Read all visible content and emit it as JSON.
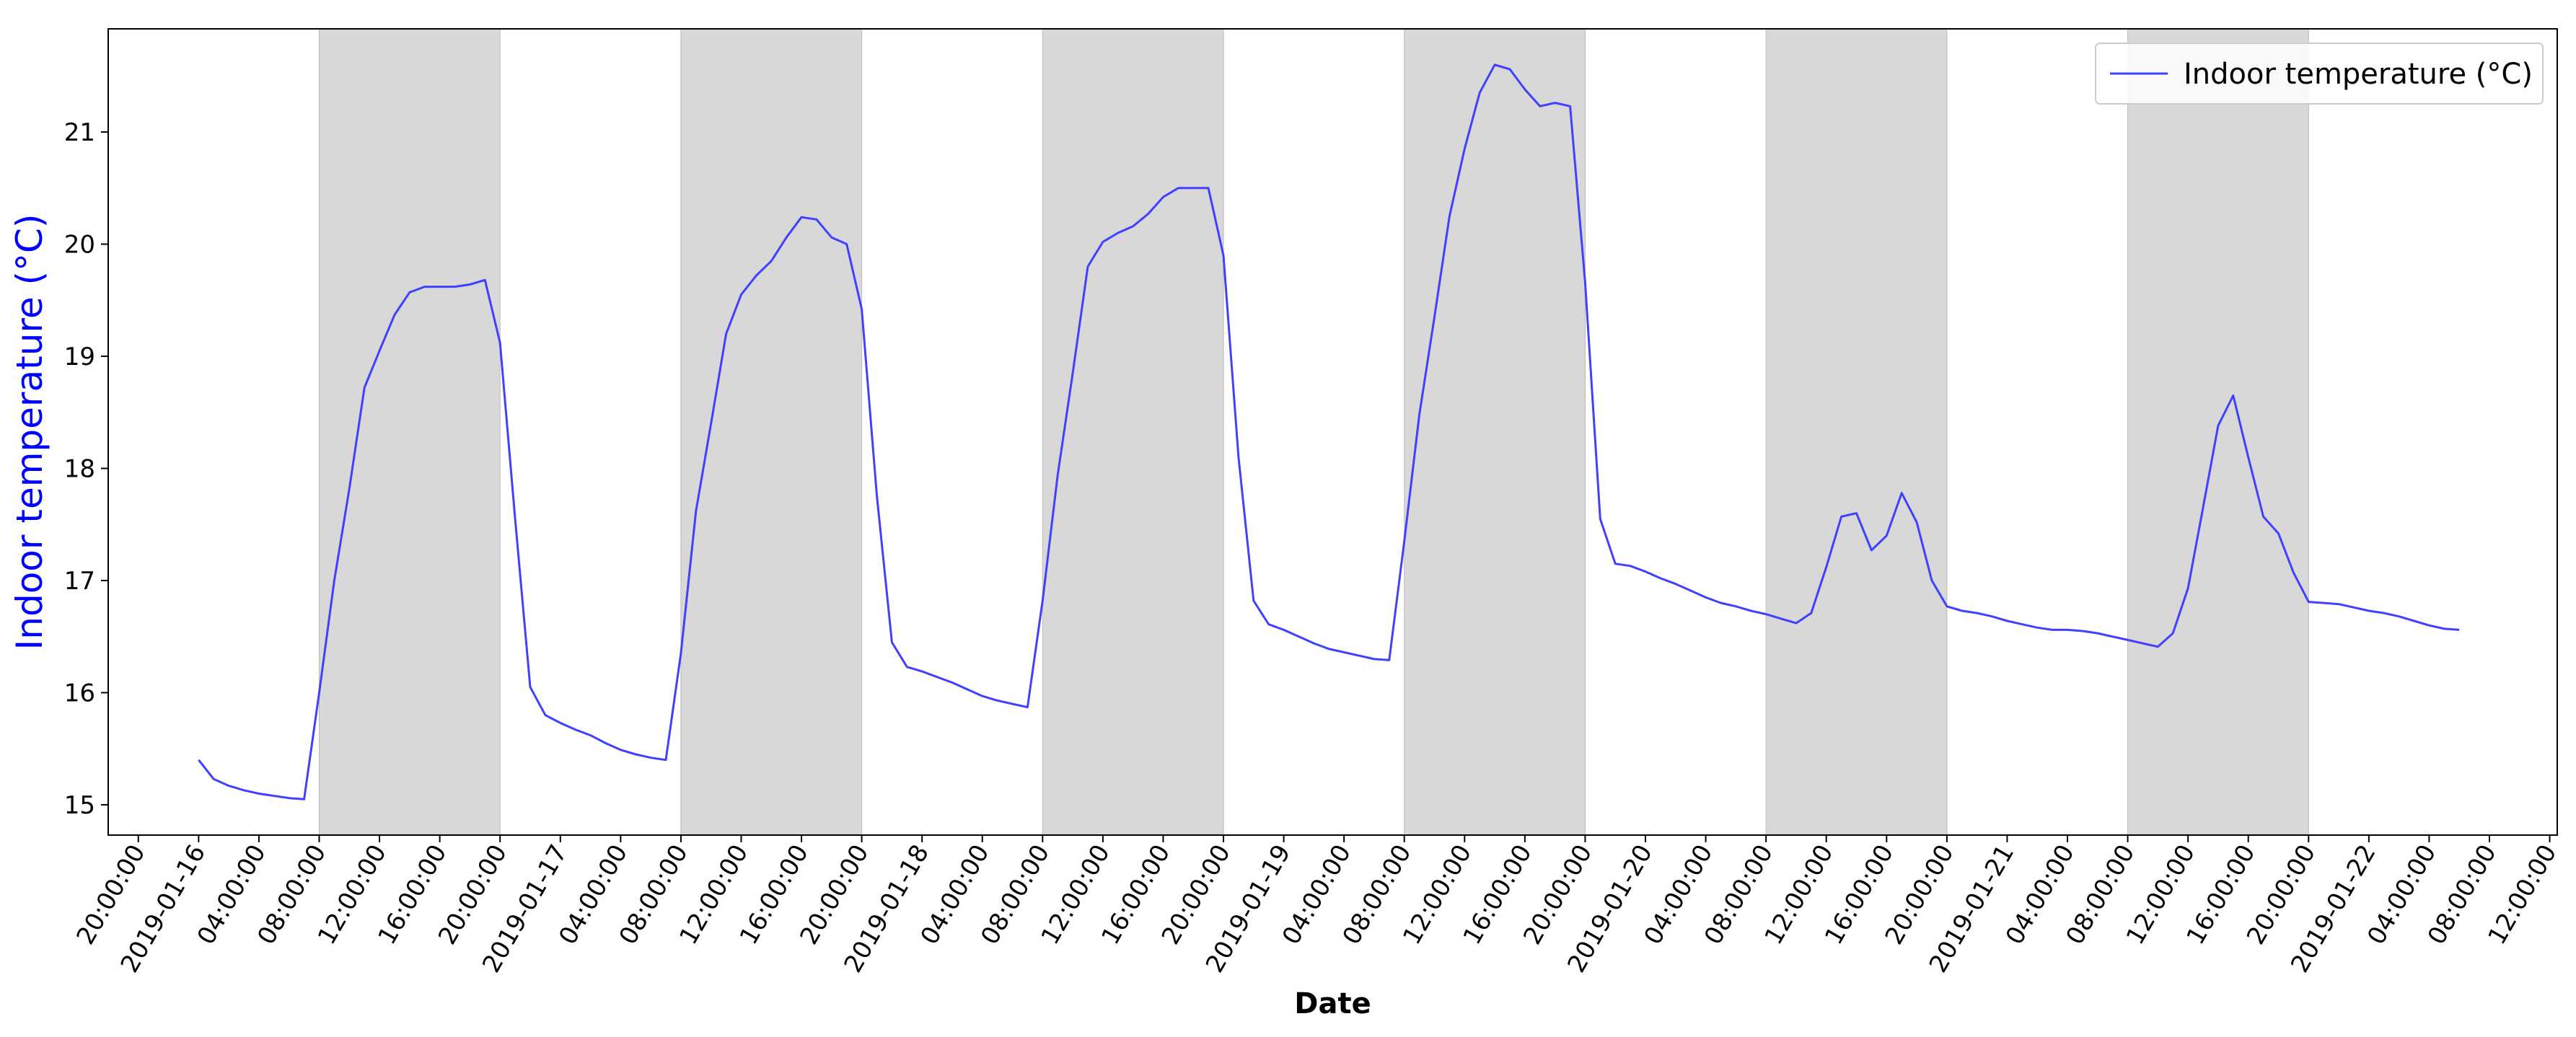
{
  "chart_data": {
    "type": "line",
    "xlabel": "Date",
    "ylabel": "Indoor temperature (°C)",
    "ylabel_color": "#0000ff",
    "line_color": "#4040ff",
    "shade_color": "#d8d8d8",
    "grid": false,
    "legend_position": "top-right",
    "xlim": [
      "2019-01-15 18:00",
      "2019-01-22 12:30"
    ],
    "ylim": [
      14.73,
      21.92
    ],
    "yticks": [
      15,
      16,
      17,
      18,
      19,
      20,
      21
    ],
    "xticks": [
      {
        "label": "20:00:00",
        "x": "2019-01-15 20:00"
      },
      {
        "label": "2019-01-16",
        "x": "2019-01-16 00:00"
      },
      {
        "label": "04:00:00",
        "x": "2019-01-16 04:00"
      },
      {
        "label": "08:00:00",
        "x": "2019-01-16 08:00"
      },
      {
        "label": "12:00:00",
        "x": "2019-01-16 12:00"
      },
      {
        "label": "16:00:00",
        "x": "2019-01-16 16:00"
      },
      {
        "label": "20:00:00",
        "x": "2019-01-16 20:00"
      },
      {
        "label": "2019-01-17",
        "x": "2019-01-17 00:00"
      },
      {
        "label": "04:00:00",
        "x": "2019-01-17 04:00"
      },
      {
        "label": "08:00:00",
        "x": "2019-01-17 08:00"
      },
      {
        "label": "12:00:00",
        "x": "2019-01-17 12:00"
      },
      {
        "label": "16:00:00",
        "x": "2019-01-17 16:00"
      },
      {
        "label": "20:00:00",
        "x": "2019-01-17 20:00"
      },
      {
        "label": "2019-01-18",
        "x": "2019-01-18 00:00"
      },
      {
        "label": "04:00:00",
        "x": "2019-01-18 04:00"
      },
      {
        "label": "08:00:00",
        "x": "2019-01-18 08:00"
      },
      {
        "label": "12:00:00",
        "x": "2019-01-18 12:00"
      },
      {
        "label": "16:00:00",
        "x": "2019-01-18 16:00"
      },
      {
        "label": "20:00:00",
        "x": "2019-01-18 20:00"
      },
      {
        "label": "2019-01-19",
        "x": "2019-01-19 00:00"
      },
      {
        "label": "04:00:00",
        "x": "2019-01-19 04:00"
      },
      {
        "label": "08:00:00",
        "x": "2019-01-19 08:00"
      },
      {
        "label": "12:00:00",
        "x": "2019-01-19 12:00"
      },
      {
        "label": "16:00:00",
        "x": "2019-01-19 16:00"
      },
      {
        "label": "20:00:00",
        "x": "2019-01-19 20:00"
      },
      {
        "label": "2019-01-20",
        "x": "2019-01-20 00:00"
      },
      {
        "label": "04:00:00",
        "x": "2019-01-20 04:00"
      },
      {
        "label": "08:00:00",
        "x": "2019-01-20 08:00"
      },
      {
        "label": "12:00:00",
        "x": "2019-01-20 12:00"
      },
      {
        "label": "16:00:00",
        "x": "2019-01-20 16:00"
      },
      {
        "label": "20:00:00",
        "x": "2019-01-20 20:00"
      },
      {
        "label": "2019-01-21",
        "x": "2019-01-21 00:00"
      },
      {
        "label": "04:00:00",
        "x": "2019-01-21 04:00"
      },
      {
        "label": "08:00:00",
        "x": "2019-01-21 08:00"
      },
      {
        "label": "12:00:00",
        "x": "2019-01-21 12:00"
      },
      {
        "label": "16:00:00",
        "x": "2019-01-21 16:00"
      },
      {
        "label": "20:00:00",
        "x": "2019-01-21 20:00"
      },
      {
        "label": "2019-01-22",
        "x": "2019-01-22 00:00"
      },
      {
        "label": "04:00:00",
        "x": "2019-01-22 04:00"
      },
      {
        "label": "08:00:00",
        "x": "2019-01-22 08:00"
      },
      {
        "label": "12:00:00",
        "x": "2019-01-22 12:00"
      }
    ],
    "shaded_intervals": [
      [
        "2019-01-16 08:00",
        "2019-01-16 20:00"
      ],
      [
        "2019-01-17 08:00",
        "2019-01-17 20:00"
      ],
      [
        "2019-01-18 08:00",
        "2019-01-18 20:00"
      ],
      [
        "2019-01-19 08:00",
        "2019-01-19 20:00"
      ],
      [
        "2019-01-20 08:00",
        "2019-01-20 20:00"
      ],
      [
        "2019-01-21 08:00",
        "2019-01-21 20:00"
      ]
    ],
    "series": [
      {
        "name": "Indoor temperature (°C)",
        "x": [
          "2019-01-16 00:00",
          "2019-01-16 01:00",
          "2019-01-16 02:00",
          "2019-01-16 03:00",
          "2019-01-16 04:00",
          "2019-01-16 05:00",
          "2019-01-16 06:00",
          "2019-01-16 07:00",
          "2019-01-16 08:00",
          "2019-01-16 09:00",
          "2019-01-16 10:00",
          "2019-01-16 11:00",
          "2019-01-16 12:00",
          "2019-01-16 13:00",
          "2019-01-16 14:00",
          "2019-01-16 15:00",
          "2019-01-16 16:00",
          "2019-01-16 17:00",
          "2019-01-16 18:00",
          "2019-01-16 19:00",
          "2019-01-16 20:00",
          "2019-01-16 21:00",
          "2019-01-16 22:00",
          "2019-01-16 23:00",
          "2019-01-17 00:00",
          "2019-01-17 01:00",
          "2019-01-17 02:00",
          "2019-01-17 03:00",
          "2019-01-17 04:00",
          "2019-01-17 05:00",
          "2019-01-17 06:00",
          "2019-01-17 07:00",
          "2019-01-17 08:00",
          "2019-01-17 09:00",
          "2019-01-17 10:00",
          "2019-01-17 11:00",
          "2019-01-17 12:00",
          "2019-01-17 13:00",
          "2019-01-17 14:00",
          "2019-01-17 15:00",
          "2019-01-17 16:00",
          "2019-01-17 17:00",
          "2019-01-17 18:00",
          "2019-01-17 19:00",
          "2019-01-17 20:00",
          "2019-01-17 21:00",
          "2019-01-17 22:00",
          "2019-01-17 23:00",
          "2019-01-18 00:00",
          "2019-01-18 01:00",
          "2019-01-18 02:00",
          "2019-01-18 03:00",
          "2019-01-18 04:00",
          "2019-01-18 05:00",
          "2019-01-18 06:00",
          "2019-01-18 07:00",
          "2019-01-18 08:00",
          "2019-01-18 09:00",
          "2019-01-18 10:00",
          "2019-01-18 11:00",
          "2019-01-18 12:00",
          "2019-01-18 13:00",
          "2019-01-18 14:00",
          "2019-01-18 15:00",
          "2019-01-18 16:00",
          "2019-01-18 17:00",
          "2019-01-18 18:00",
          "2019-01-18 19:00",
          "2019-01-18 20:00",
          "2019-01-18 21:00",
          "2019-01-18 22:00",
          "2019-01-18 23:00",
          "2019-01-19 00:00",
          "2019-01-19 01:00",
          "2019-01-19 02:00",
          "2019-01-19 03:00",
          "2019-01-19 04:00",
          "2019-01-19 05:00",
          "2019-01-19 06:00",
          "2019-01-19 07:00",
          "2019-01-19 08:00",
          "2019-01-19 09:00",
          "2019-01-19 10:00",
          "2019-01-19 11:00",
          "2019-01-19 12:00",
          "2019-01-19 13:00",
          "2019-01-19 14:00",
          "2019-01-19 15:00",
          "2019-01-19 16:00",
          "2019-01-19 17:00",
          "2019-01-19 18:00",
          "2019-01-19 19:00",
          "2019-01-19 20:00",
          "2019-01-19 21:00",
          "2019-01-19 22:00",
          "2019-01-19 23:00",
          "2019-01-20 00:00",
          "2019-01-20 01:00",
          "2019-01-20 02:00",
          "2019-01-20 03:00",
          "2019-01-20 04:00",
          "2019-01-20 05:00",
          "2019-01-20 06:00",
          "2019-01-20 07:00",
          "2019-01-20 08:00",
          "2019-01-20 09:00",
          "2019-01-20 10:00",
          "2019-01-20 11:00",
          "2019-01-20 12:00",
          "2019-01-20 13:00",
          "2019-01-20 14:00",
          "2019-01-20 15:00",
          "2019-01-20 16:00",
          "2019-01-20 17:00",
          "2019-01-20 18:00",
          "2019-01-20 19:00",
          "2019-01-20 20:00",
          "2019-01-20 21:00",
          "2019-01-20 22:00",
          "2019-01-20 23:00",
          "2019-01-21 00:00",
          "2019-01-21 01:00",
          "2019-01-21 02:00",
          "2019-01-21 03:00",
          "2019-01-21 04:00",
          "2019-01-21 05:00",
          "2019-01-21 06:00",
          "2019-01-21 07:00",
          "2019-01-21 08:00",
          "2019-01-21 09:00",
          "2019-01-21 10:00",
          "2019-01-21 11:00",
          "2019-01-21 12:00",
          "2019-01-21 13:00",
          "2019-01-21 14:00",
          "2019-01-21 15:00",
          "2019-01-21 16:00",
          "2019-01-21 17:00",
          "2019-01-21 18:00",
          "2019-01-21 19:00",
          "2019-01-21 20:00",
          "2019-01-21 21:00",
          "2019-01-21 22:00",
          "2019-01-21 23:00",
          "2019-01-22 00:00",
          "2019-01-22 01:00",
          "2019-01-22 02:00",
          "2019-01-22 03:00",
          "2019-01-22 04:00",
          "2019-01-22 05:00",
          "2019-01-22 06:00"
        ],
        "y": [
          15.4,
          15.23,
          15.17,
          15.13,
          15.1,
          15.08,
          15.06,
          15.05,
          16.0,
          17.0,
          17.82,
          18.72,
          19.05,
          19.37,
          19.57,
          19.62,
          19.62,
          19.62,
          19.64,
          19.68,
          19.12,
          17.55,
          16.05,
          15.8,
          15.73,
          15.67,
          15.62,
          15.55,
          15.49,
          15.45,
          15.42,
          15.4,
          16.35,
          17.62,
          18.4,
          19.2,
          19.55,
          19.72,
          19.85,
          20.06,
          20.24,
          20.22,
          20.06,
          20.0,
          19.42,
          17.76,
          16.45,
          16.23,
          16.19,
          16.14,
          16.09,
          16.03,
          15.97,
          15.93,
          15.9,
          15.87,
          16.82,
          17.94,
          18.85,
          19.8,
          20.02,
          20.1,
          20.16,
          20.27,
          20.42,
          20.5,
          20.5,
          20.5,
          19.9,
          18.1,
          16.82,
          16.61,
          16.56,
          16.5,
          16.44,
          16.39,
          16.36,
          16.33,
          16.3,
          16.29,
          17.35,
          18.48,
          19.35,
          20.25,
          20.85,
          21.35,
          21.6,
          21.56,
          21.38,
          21.23,
          21.26,
          21.23,
          19.66,
          17.55,
          17.15,
          17.13,
          17.08,
          17.02,
          16.97,
          16.91,
          16.85,
          16.8,
          16.77,
          16.73,
          16.7,
          16.66,
          16.62,
          16.71,
          17.12,
          17.57,
          17.6,
          17.27,
          17.4,
          17.78,
          17.52,
          17.0,
          16.77,
          16.73,
          16.71,
          16.68,
          16.64,
          16.61,
          16.58,
          16.56,
          16.56,
          16.55,
          16.53,
          16.5,
          16.47,
          16.44,
          16.41,
          16.53,
          16.93,
          17.65,
          18.38,
          18.65,
          18.1,
          17.57,
          17.42,
          17.07,
          16.81,
          16.8,
          16.79,
          16.76,
          16.73,
          16.71,
          16.68,
          16.64,
          16.6,
          16.57,
          16.56
        ]
      }
    ]
  }
}
